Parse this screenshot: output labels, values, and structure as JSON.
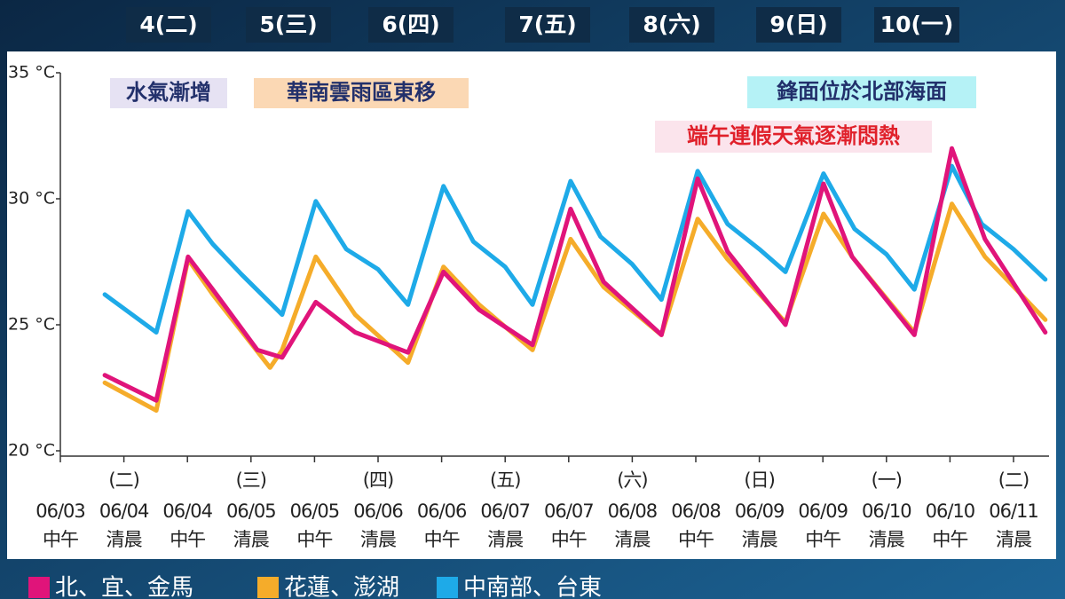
{
  "chart_data": {
    "type": "line",
    "day_headers": [
      "4(二)",
      "5(三)",
      "6(四)",
      "7(五)",
      "8(六)",
      "9(日)",
      "10(一)"
    ],
    "annotations": [
      "水氣漸增",
      "華南雲雨區東移",
      "鋒面位於北部海面",
      "端午連假天氣逐漸悶熱"
    ],
    "categories": [
      "06/03",
      "06/04",
      "06/04",
      "06/05",
      "06/05",
      "06/06",
      "06/06",
      "06/07",
      "06/07",
      "06/08",
      "06/08",
      "06/09",
      "06/09",
      "06/10",
      "06/10",
      "06/11"
    ],
    "category_times": [
      "中午",
      "清晨",
      "中午",
      "清晨",
      "中午",
      "清晨",
      "中午",
      "清晨",
      "中午",
      "清晨",
      "中午",
      "清晨",
      "中午",
      "清晨",
      "中午",
      "清晨"
    ],
    "category_weekdays": [
      null,
      "(二)",
      null,
      "(三)",
      null,
      "(四)",
      null,
      "(五)",
      null,
      "(六)",
      null,
      "(日)",
      null,
      "(一)",
      null,
      "(二)"
    ],
    "highlight_categories": [
      9,
      10,
      11,
      12
    ],
    "highlight_color": "#e0302a",
    "xlim": [
      0,
      15.55
    ],
    "ylim": [
      20,
      35
    ],
    "yticks": [
      {
        "value": 20,
        "label": "20 °C"
      },
      {
        "value": 25,
        "label": "25 °C"
      },
      {
        "value": 30,
        "label": "30 °C"
      },
      {
        "value": 35,
        "label": "35 °C"
      }
    ],
    "series": [
      {
        "name": "中南部、台東",
        "color": "#1eaae8",
        "x": [
          0.7,
          1.51,
          2.01,
          2.4,
          2.85,
          3.49,
          4.02,
          4.5,
          5,
          5.47,
          6.03,
          6.5,
          7,
          7.43,
          8.03,
          8.5,
          9,
          9.46,
          10.03,
          10.5,
          11,
          11.41,
          12.01,
          12.5,
          13,
          13.44,
          14.03,
          14.5,
          15,
          15.5
        ],
        "values": [
          26.2,
          24.7,
          29.5,
          28.2,
          27.0,
          25.4,
          29.9,
          28.0,
          27.2,
          25.8,
          30.5,
          28.3,
          27.3,
          25.8,
          30.7,
          28.5,
          27.4,
          26.0,
          31.1,
          29.0,
          28.0,
          27.1,
          31.0,
          28.8,
          27.8,
          26.4,
          31.3,
          29.0,
          28.0,
          26.8
        ]
      },
      {
        "name": "花蓮、澎湖",
        "color": "#f5ac2a",
        "x": [
          0.7,
          1.51,
          2.01,
          2.4,
          3.3,
          3.49,
          4.02,
          4.64,
          5.47,
          6.03,
          6.59,
          7.43,
          8.03,
          8.55,
          9.46,
          10.03,
          10.5,
          11.41,
          12.01,
          12.46,
          13.44,
          14.03,
          14.55,
          15.5
        ],
        "values": [
          22.7,
          21.6,
          27.6,
          26.2,
          23.3,
          24.0,
          27.7,
          25.4,
          23.5,
          27.3,
          25.8,
          24.0,
          28.4,
          26.5,
          24.6,
          29.2,
          27.6,
          25.1,
          29.4,
          27.7,
          24.7,
          29.8,
          27.7,
          25.2
        ]
      },
      {
        "name": "北、宜、金馬",
        "color": "#e0147a",
        "x": [
          0.7,
          1.51,
          2.01,
          2.4,
          3.1,
          3.49,
          4.02,
          4.64,
          5.47,
          6.03,
          6.59,
          7.43,
          8.03,
          8.55,
          9.46,
          10.03,
          10.5,
          11.41,
          12.01,
          12.46,
          13.44,
          14.03,
          14.55,
          15.5
        ],
        "values": [
          23.0,
          22.0,
          27.7,
          26.4,
          24.0,
          23.7,
          25.9,
          24.7,
          23.9,
          27.1,
          25.6,
          24.2,
          29.6,
          26.7,
          24.6,
          30.8,
          27.9,
          25.0,
          30.6,
          27.7,
          24.6,
          32.0,
          28.4,
          24.7
        ]
      }
    ]
  }
}
